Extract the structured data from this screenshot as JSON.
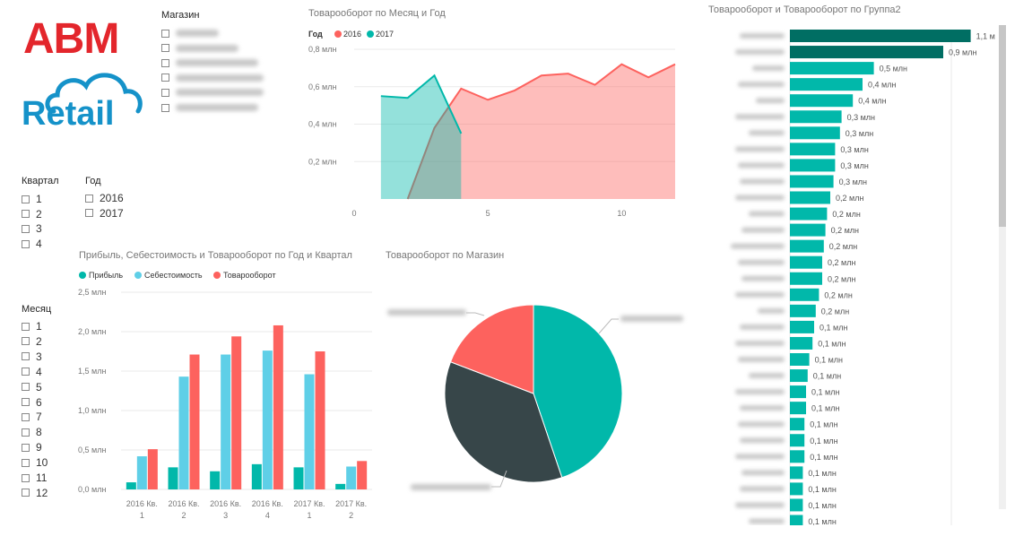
{
  "logo": {
    "line1": "ABM",
    "line2": "Retail",
    "color_red": "#e3262c",
    "color_blue": "#1592c9",
    "icon": "cloud-icon"
  },
  "store_slicer": {
    "title": "Магазин",
    "items": [
      {
        "label_widths": 48
      },
      {
        "label_widths": 70
      },
      {
        "label_widths": 92
      },
      {
        "label_widths": 98
      },
      {
        "label_widths": 98
      },
      {
        "label_widths": 92
      }
    ]
  },
  "quarter_slicer": {
    "title": "Квартал",
    "items": [
      "1",
      "2",
      "3",
      "4"
    ]
  },
  "year_slicer": {
    "title": "Год",
    "items": [
      "2016",
      "2017"
    ]
  },
  "month_slicer": {
    "title": "Месяц",
    "items": [
      "1",
      "2",
      "3",
      "4",
      "5",
      "6",
      "7",
      "8",
      "9",
      "10",
      "11",
      "12"
    ]
  },
  "colors": {
    "teal": "#01b8aa",
    "red": "#fd625e",
    "light_blue": "#5fcfe7",
    "dark": "#374649",
    "dark_teal": "#006e63"
  },
  "chart_data": [
    {
      "id": "area_month_year",
      "type": "area",
      "title": "Товарооборот по Месяц и Год",
      "legend_title": "Год",
      "legend_position": "top-left",
      "xlim": [
        0,
        12
      ],
      "x_ticks": [
        "0",
        "5",
        "10"
      ],
      "x_tick_values": [
        0,
        5,
        10
      ],
      "ylim": [
        0,
        0.8
      ],
      "y_ticks": [
        "0,2 млн",
        "0,4 млн",
        "0,6 млн",
        "0,8 млн"
      ],
      "y_tick_values": [
        0.2,
        0.4,
        0.6,
        0.8
      ],
      "series": [
        {
          "name": "2016",
          "color": "#fd625e",
          "x": [
            2,
            3,
            4,
            5,
            6,
            7,
            8,
            9,
            10,
            11,
            12
          ],
          "y": [
            0.0,
            0.38,
            0.59,
            0.53,
            0.58,
            0.66,
            0.67,
            0.61,
            0.72,
            0.65,
            0.72
          ]
        },
        {
          "name": "2017",
          "color": "#01b8aa",
          "x": [
            1,
            2,
            3,
            4
          ],
          "y": [
            0.55,
            0.54,
            0.66,
            0.35
          ]
        }
      ]
    },
    {
      "id": "bar_group2",
      "type": "bar",
      "orientation": "horizontal",
      "title": "Товарооборот и Товарооборот по Группа2",
      "xlim": [
        0,
        1.2
      ],
      "x_ticks": [
        "0 млн",
        "1 млн"
      ],
      "x_tick_values": [
        0,
        1
      ],
      "values": [
        1.12,
        0.95,
        0.52,
        0.45,
        0.39,
        0.32,
        0.31,
        0.28,
        0.28,
        0.27,
        0.25,
        0.23,
        0.22,
        0.21,
        0.2,
        0.2,
        0.18,
        0.16,
        0.15,
        0.14,
        0.12,
        0.11,
        0.1,
        0.1,
        0.09,
        0.09,
        0.09,
        0.08,
        0.08,
        0.08,
        0.08
      ],
      "labels": [
        "1,1 млн",
        "0,9 млн",
        "0,5 млн",
        "0,4 млн",
        "0,4 млн",
        "0,3 млн",
        "0,3 млн",
        "0,3 млн",
        "0,3 млн",
        "0,3 млн",
        "0,2 млн",
        "0,2 млн",
        "0,2 млн",
        "0,2 млн",
        "0,2 млн",
        "0,2 млн",
        "0,2 млн",
        "0,2 млн",
        "0,1 млн",
        "0,1 млн",
        "0,1 млн",
        "0,1 млн",
        "0,1 млн",
        "0,1 млн",
        "0,1 млн",
        "0,1 млн",
        "0,1 млн",
        "0,1 млн",
        "0,1 млн",
        "0,1 млн",
        "0,1 млн"
      ],
      "category_label_widths": [
        50,
        55,
        36,
        52,
        32,
        55,
        40,
        55,
        52,
        50,
        55,
        40,
        48,
        60,
        52,
        48,
        55,
        30,
        50,
        55,
        52,
        40,
        55,
        50,
        52,
        50,
        55,
        48,
        50,
        55,
        40
      ]
    },
    {
      "id": "column_profit_cost",
      "type": "bar",
      "title": "Прибыль, Себестоимость и Товарооборот по Год и Квартал",
      "legend_position": "top-left",
      "categories": [
        [
          "2016 Кв.",
          "1"
        ],
        [
          "2016 Кв.",
          "2"
        ],
        [
          "2016 Кв.",
          "3"
        ],
        [
          "2016 Кв.",
          "4"
        ],
        [
          "2017 Кв.",
          "1"
        ],
        [
          "2017 Кв.",
          "2"
        ]
      ],
      "ylim": [
        0,
        2.5
      ],
      "y_ticks": [
        "0,0 млн",
        "0,5 млн",
        "1,0 млн",
        "1,5 млн",
        "2,0 млн",
        "2,5 млн"
      ],
      "y_tick_values": [
        0,
        0.5,
        1.0,
        1.5,
        2.0,
        2.5
      ],
      "series": [
        {
          "name": "Прибыль",
          "color": "#01b8aa",
          "values": [
            0.09,
            0.28,
            0.23,
            0.32,
            0.28,
            0.07
          ]
        },
        {
          "name": "Себестоимость",
          "color": "#5fcfe7",
          "values": [
            0.42,
            1.43,
            1.71,
            1.76,
            1.46,
            0.29
          ]
        },
        {
          "name": "Товарооборот",
          "color": "#fd625e",
          "values": [
            0.51,
            1.71,
            1.94,
            2.08,
            1.75,
            0.36
          ]
        }
      ]
    },
    {
      "id": "pie_store",
      "type": "pie",
      "title": "Товарооборот по Магазин",
      "slices": [
        {
          "value": 44.8,
          "color": "#01b8aa"
        },
        {
          "value": 36.0,
          "color": "#374649"
        },
        {
          "value": 19.2,
          "color": "#fd625e"
        }
      ]
    }
  ]
}
